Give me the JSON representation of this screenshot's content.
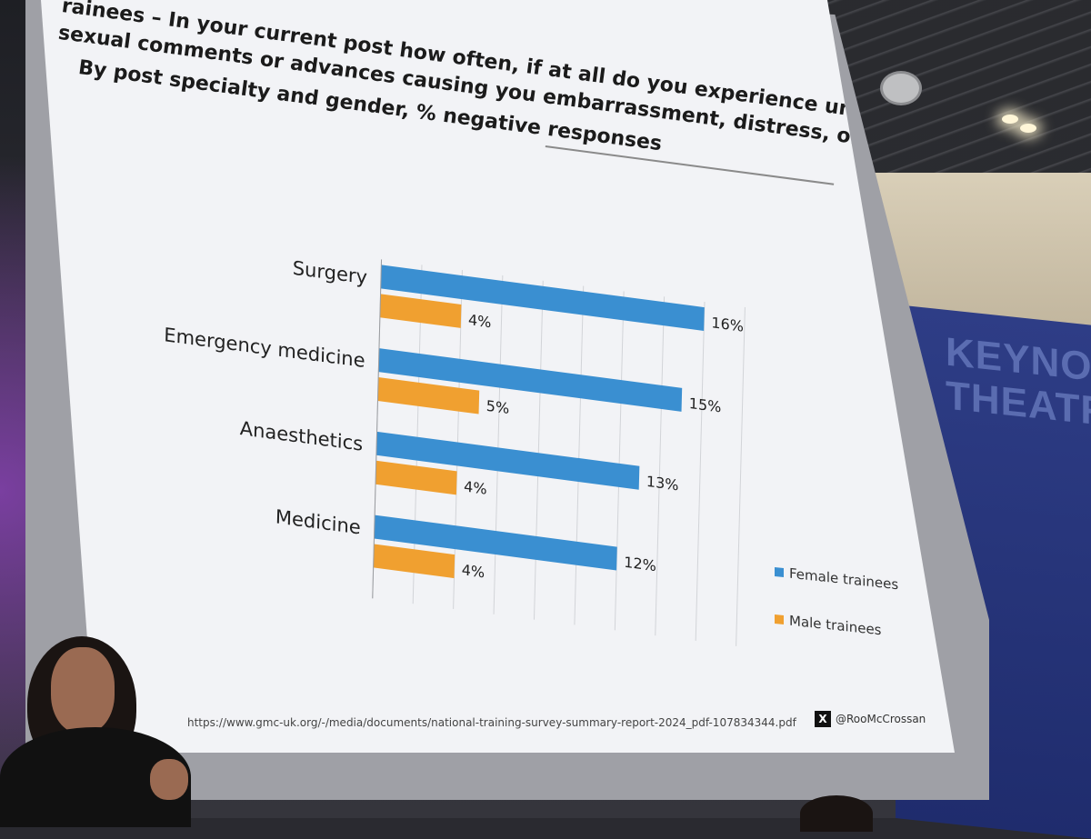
{
  "slide": {
    "title_line1": "rainees – In your current post how often, if at all do you experience unwelcome",
    "title_line2": "sexual comments or advances causing you embarrassment, distress, or offence?",
    "subtitle": "By post specialty and gender, % negative responses",
    "footer_url": "https://www.gmc-uk.org/-/media/documents/national-training-survey-summary-report-2024_pdf-107834344.pdf",
    "handle": "@RooMcCrossan",
    "handle_icon": "x-logo-icon"
  },
  "venue": {
    "sign": "KEYNOTE\nTHEATRE"
  },
  "chart_data": {
    "type": "bar",
    "orientation": "horizontal",
    "categories": [
      "Surgery",
      "Emergency medicine",
      "Anaesthetics",
      "Medicine"
    ],
    "series": [
      {
        "name": "Female trainees",
        "values": [
          16,
          15,
          13,
          12
        ],
        "color": "#3a8fd1"
      },
      {
        "name": "Male trainees",
        "values": [
          4,
          5,
          4,
          4
        ],
        "color": "#f0a030"
      }
    ],
    "value_suffix": "%",
    "xlim": [
      0,
      18
    ],
    "grid": true,
    "legend_placement": "bottom-right"
  }
}
